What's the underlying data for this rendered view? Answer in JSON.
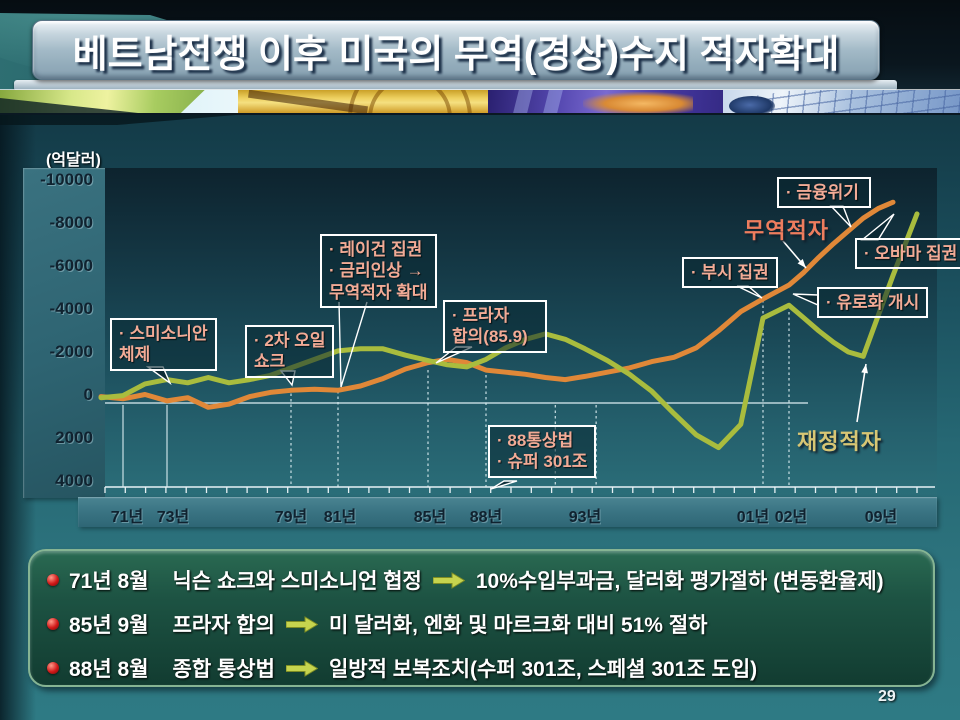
{
  "title": "베트남전쟁 이후 미국의 무역(경상)수지 적자확대",
  "page_number": "29",
  "chart_data": {
    "type": "line",
    "unit_label": "(억달러)",
    "y_axis": {
      "ticks": [
        -10000,
        -8000,
        -6000,
        -4000,
        -2000,
        0,
        2000,
        4000
      ],
      "inverted": true,
      "range": [
        -10000,
        4000
      ]
    },
    "x_axis": {
      "tick_labels": [
        "71년",
        "73년",
        "79년",
        "81년",
        "85년",
        "88년",
        "93년",
        "01년",
        "02년",
        "09년"
      ],
      "tick_years": [
        1971,
        1973,
        1979,
        1981,
        1985,
        1988,
        1993,
        2001,
        2002,
        2009
      ]
    },
    "series": [
      {
        "name": "무역적자",
        "color": "#E08838",
        "x": [
          1970,
          1971,
          1972,
          1973,
          1974,
          1975,
          1976,
          1977,
          1978,
          1979,
          1980,
          1981,
          1982,
          1983,
          1984,
          1985,
          1986,
          1987,
          1988,
          1989,
          1990,
          1991,
          1992,
          1993,
          1994,
          1995,
          1996,
          1997,
          1998,
          1999,
          2000,
          2001,
          2002,
          2003,
          2004,
          2005,
          2006,
          2007,
          2008,
          2009
        ],
        "values": [
          -300,
          -200,
          -400,
          -100,
          -250,
          200,
          50,
          -300,
          -500,
          -600,
          -650,
          -600,
          -800,
          -1150,
          -1600,
          -1900,
          -2050,
          -1900,
          -1550,
          -1450,
          -1350,
          -1200,
          -1100,
          -1250,
          -1450,
          -1650,
          -1950,
          -2150,
          -2600,
          -3400,
          -4300,
          -4900,
          -5550,
          -6150,
          -6850,
          -7500,
          -8100,
          -8700,
          -9150,
          -9450
        ]
      },
      {
        "name": "재정적자",
        "color": "#A9BC3E",
        "x": [
          1970,
          1971,
          1972,
          1973,
          1974,
          1975,
          1976,
          1977,
          1978,
          1979,
          1980,
          1981,
          1982,
          1983,
          1984,
          1985,
          1986,
          1987,
          1988,
          1989,
          1990,
          1991,
          1992,
          1993,
          1994,
          1995,
          1996,
          1997,
          1998,
          1999,
          2000,
          2001,
          2002,
          2003,
          2004,
          2005,
          2006,
          2007,
          2008,
          2009,
          2010
        ],
        "values": [
          -250,
          -350,
          -900,
          -1100,
          -950,
          -1200,
          -950,
          -1100,
          -1300,
          -1650,
          -2050,
          -2450,
          -2550,
          -2550,
          -2250,
          -2000,
          -1800,
          -1700,
          -2050,
          -2600,
          -3000,
          -3250,
          -3000,
          -2550,
          -2000,
          -1350,
          -550,
          500,
          1500,
          2100,
          1000,
          -4000,
          -4600,
          -4000,
          -3400,
          -2850,
          -2400,
          -2200,
          -4100,
          -6000,
          -8900
        ]
      }
    ],
    "annotations": [
      {
        "id": "smithsonian",
        "lines": [
          "· 스미소니안",
          "체제"
        ]
      },
      {
        "id": "oil",
        "lines": [
          "· 2차 오일",
          "쇼크"
        ]
      },
      {
        "id": "reagan",
        "lines": [
          "· 레이건 집권",
          "· 금리인상 →",
          "무역적자 확대"
        ]
      },
      {
        "id": "plaza",
        "lines": [
          "· 프라자",
          "합의(85.9)"
        ]
      },
      {
        "id": "law88",
        "lines": [
          "· 88통상법",
          "· 슈퍼 301조"
        ]
      },
      {
        "id": "bush",
        "lines": [
          "· 부시 집권"
        ]
      },
      {
        "id": "crisis",
        "lines": [
          "· 금융위기"
        ]
      },
      {
        "id": "obama",
        "lines": [
          "· 오바마 집권"
        ]
      },
      {
        "id": "euro",
        "lines": [
          "· 유로화 개시"
        ]
      }
    ],
    "series_labels": [
      {
        "id": "trade",
        "text": "무역적자",
        "color": "#EE7D5E"
      },
      {
        "id": "fiscal",
        "text": "재정적자",
        "color": "#D8C674"
      }
    ]
  },
  "bottom_box": {
    "rows": [
      {
        "date": "71년 8월",
        "label": "닉슨 쇼크와 스미소니언 협정",
        "result": "10%수입부과금, 달러화 평가절하 (변동환율제)"
      },
      {
        "date": "85년 9월",
        "label": "프라자 합의",
        "result": "미 달러화, 엔화 및 마르크화 대비 51% 절하"
      },
      {
        "date": "88년 8월",
        "label": "종합 통상법",
        "result": "일방적 보복조치(수퍼 301조, 스페셜 301조 도입)"
      }
    ]
  }
}
